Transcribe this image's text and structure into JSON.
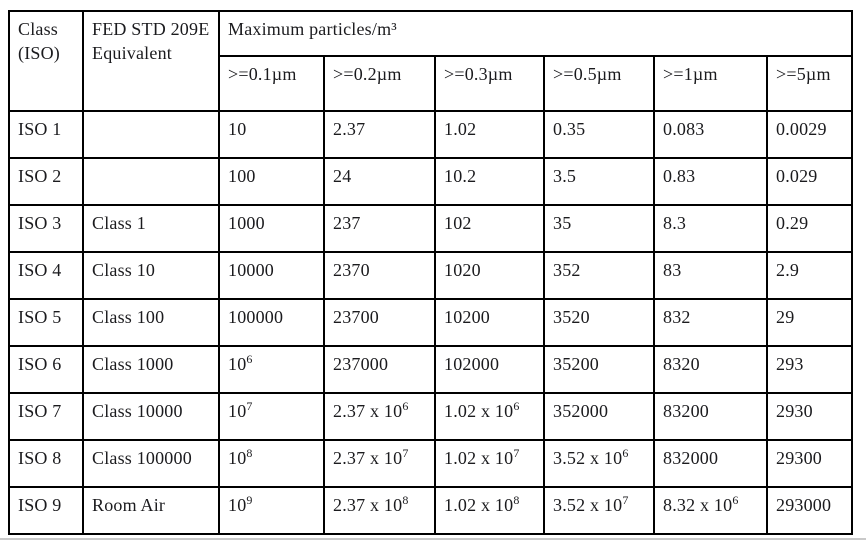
{
  "table": {
    "header": {
      "class_iso": "Class (ISO)",
      "fed_std": "FED STD 209E Equivalent",
      "max_particles": "Maximum particles/m³",
      "size_columns": [
        ">=0.1µm",
        ">=0.2µm",
        ">=0.3µm",
        ">=0.5µm",
        ">=1µm",
        ">=5µm"
      ]
    },
    "rows": [
      {
        "iso": "ISO 1",
        "fed": "",
        "values": [
          "10",
          "2.37",
          "1.02",
          "0.35",
          "0.083",
          "0.0029"
        ]
      },
      {
        "iso": "ISO 2",
        "fed": "",
        "values": [
          "100",
          "24",
          "10.2",
          "3.5",
          "0.83",
          "0.029"
        ]
      },
      {
        "iso": "ISO 3",
        "fed": "Class 1",
        "values": [
          "1000",
          "237",
          "102",
          "35",
          "8.3",
          "0.29"
        ]
      },
      {
        "iso": "ISO 4",
        "fed": "Class 10",
        "values": [
          "10000",
          "2370",
          "1020",
          "352",
          "83",
          "2.9"
        ]
      },
      {
        "iso": "ISO 5",
        "fed": "Class 100",
        "values": [
          "100000",
          "23700",
          "10200",
          "3520",
          "832",
          "29"
        ]
      },
      {
        "iso": "ISO 6",
        "fed": "Class 1000",
        "values": [
          "10^6",
          "237000",
          "102000",
          "35200",
          "8320",
          "293"
        ]
      },
      {
        "iso": "ISO 7",
        "fed": "Class 10000",
        "values": [
          "10^7",
          "2.37 x 10^6",
          "1.02 x 10^6",
          "352000",
          "83200",
          "2930"
        ]
      },
      {
        "iso": "ISO 8",
        "fed": "Class 100000",
        "values": [
          "10^8",
          "2.37 x 10^7",
          "1.02 x 10^7",
          "3.52 x 10^6",
          "832000",
          "29300"
        ]
      },
      {
        "iso": "ISO 9",
        "fed": "Room Air",
        "values": [
          "10^9",
          "2.37 x 10^8",
          "1.02 x 10^8",
          "3.52 x 10^7",
          "8.32 x 10^6",
          "293000"
        ]
      }
    ]
  }
}
